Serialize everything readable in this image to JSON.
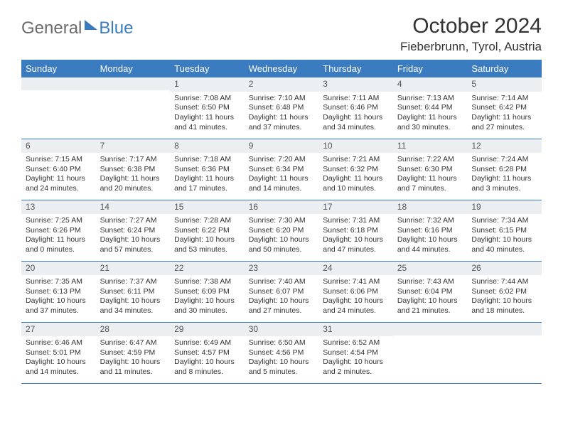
{
  "logo": {
    "general": "General",
    "blue": "Blue"
  },
  "title": "October 2024",
  "location": "Fieberbrunn, Tyrol, Austria",
  "weekdays": [
    "Sunday",
    "Monday",
    "Tuesday",
    "Wednesday",
    "Thursday",
    "Friday",
    "Saturday"
  ],
  "colors": {
    "header_bg": "#3b7bbf",
    "header_text": "#ffffff",
    "daynum_bg": "#eceff1",
    "border": "#3b7bbf",
    "logo_gray": "#6b6b6b",
    "logo_blue": "#3b7bbf"
  },
  "weeks": [
    [
      {
        "day": "",
        "sunrise": "",
        "sunset": "",
        "daylight": ""
      },
      {
        "day": "",
        "sunrise": "",
        "sunset": "",
        "daylight": ""
      },
      {
        "day": "1",
        "sunrise": "Sunrise: 7:08 AM",
        "sunset": "Sunset: 6:50 PM",
        "daylight": "Daylight: 11 hours and 41 minutes."
      },
      {
        "day": "2",
        "sunrise": "Sunrise: 7:10 AM",
        "sunset": "Sunset: 6:48 PM",
        "daylight": "Daylight: 11 hours and 37 minutes."
      },
      {
        "day": "3",
        "sunrise": "Sunrise: 7:11 AM",
        "sunset": "Sunset: 6:46 PM",
        "daylight": "Daylight: 11 hours and 34 minutes."
      },
      {
        "day": "4",
        "sunrise": "Sunrise: 7:13 AM",
        "sunset": "Sunset: 6:44 PM",
        "daylight": "Daylight: 11 hours and 30 minutes."
      },
      {
        "day": "5",
        "sunrise": "Sunrise: 7:14 AM",
        "sunset": "Sunset: 6:42 PM",
        "daylight": "Daylight: 11 hours and 27 minutes."
      }
    ],
    [
      {
        "day": "6",
        "sunrise": "Sunrise: 7:15 AM",
        "sunset": "Sunset: 6:40 PM",
        "daylight": "Daylight: 11 hours and 24 minutes."
      },
      {
        "day": "7",
        "sunrise": "Sunrise: 7:17 AM",
        "sunset": "Sunset: 6:38 PM",
        "daylight": "Daylight: 11 hours and 20 minutes."
      },
      {
        "day": "8",
        "sunrise": "Sunrise: 7:18 AM",
        "sunset": "Sunset: 6:36 PM",
        "daylight": "Daylight: 11 hours and 17 minutes."
      },
      {
        "day": "9",
        "sunrise": "Sunrise: 7:20 AM",
        "sunset": "Sunset: 6:34 PM",
        "daylight": "Daylight: 11 hours and 14 minutes."
      },
      {
        "day": "10",
        "sunrise": "Sunrise: 7:21 AM",
        "sunset": "Sunset: 6:32 PM",
        "daylight": "Daylight: 11 hours and 10 minutes."
      },
      {
        "day": "11",
        "sunrise": "Sunrise: 7:22 AM",
        "sunset": "Sunset: 6:30 PM",
        "daylight": "Daylight: 11 hours and 7 minutes."
      },
      {
        "day": "12",
        "sunrise": "Sunrise: 7:24 AM",
        "sunset": "Sunset: 6:28 PM",
        "daylight": "Daylight: 11 hours and 3 minutes."
      }
    ],
    [
      {
        "day": "13",
        "sunrise": "Sunrise: 7:25 AM",
        "sunset": "Sunset: 6:26 PM",
        "daylight": "Daylight: 11 hours and 0 minutes."
      },
      {
        "day": "14",
        "sunrise": "Sunrise: 7:27 AM",
        "sunset": "Sunset: 6:24 PM",
        "daylight": "Daylight: 10 hours and 57 minutes."
      },
      {
        "day": "15",
        "sunrise": "Sunrise: 7:28 AM",
        "sunset": "Sunset: 6:22 PM",
        "daylight": "Daylight: 10 hours and 53 minutes."
      },
      {
        "day": "16",
        "sunrise": "Sunrise: 7:30 AM",
        "sunset": "Sunset: 6:20 PM",
        "daylight": "Daylight: 10 hours and 50 minutes."
      },
      {
        "day": "17",
        "sunrise": "Sunrise: 7:31 AM",
        "sunset": "Sunset: 6:18 PM",
        "daylight": "Daylight: 10 hours and 47 minutes."
      },
      {
        "day": "18",
        "sunrise": "Sunrise: 7:32 AM",
        "sunset": "Sunset: 6:16 PM",
        "daylight": "Daylight: 10 hours and 44 minutes."
      },
      {
        "day": "19",
        "sunrise": "Sunrise: 7:34 AM",
        "sunset": "Sunset: 6:15 PM",
        "daylight": "Daylight: 10 hours and 40 minutes."
      }
    ],
    [
      {
        "day": "20",
        "sunrise": "Sunrise: 7:35 AM",
        "sunset": "Sunset: 6:13 PM",
        "daylight": "Daylight: 10 hours and 37 minutes."
      },
      {
        "day": "21",
        "sunrise": "Sunrise: 7:37 AM",
        "sunset": "Sunset: 6:11 PM",
        "daylight": "Daylight: 10 hours and 34 minutes."
      },
      {
        "day": "22",
        "sunrise": "Sunrise: 7:38 AM",
        "sunset": "Sunset: 6:09 PM",
        "daylight": "Daylight: 10 hours and 30 minutes."
      },
      {
        "day": "23",
        "sunrise": "Sunrise: 7:40 AM",
        "sunset": "Sunset: 6:07 PM",
        "daylight": "Daylight: 10 hours and 27 minutes."
      },
      {
        "day": "24",
        "sunrise": "Sunrise: 7:41 AM",
        "sunset": "Sunset: 6:06 PM",
        "daylight": "Daylight: 10 hours and 24 minutes."
      },
      {
        "day": "25",
        "sunrise": "Sunrise: 7:43 AM",
        "sunset": "Sunset: 6:04 PM",
        "daylight": "Daylight: 10 hours and 21 minutes."
      },
      {
        "day": "26",
        "sunrise": "Sunrise: 7:44 AM",
        "sunset": "Sunset: 6:02 PM",
        "daylight": "Daylight: 10 hours and 18 minutes."
      }
    ],
    [
      {
        "day": "27",
        "sunrise": "Sunrise: 6:46 AM",
        "sunset": "Sunset: 5:01 PM",
        "daylight": "Daylight: 10 hours and 14 minutes."
      },
      {
        "day": "28",
        "sunrise": "Sunrise: 6:47 AM",
        "sunset": "Sunset: 4:59 PM",
        "daylight": "Daylight: 10 hours and 11 minutes."
      },
      {
        "day": "29",
        "sunrise": "Sunrise: 6:49 AM",
        "sunset": "Sunset: 4:57 PM",
        "daylight": "Daylight: 10 hours and 8 minutes."
      },
      {
        "day": "30",
        "sunrise": "Sunrise: 6:50 AM",
        "sunset": "Sunset: 4:56 PM",
        "daylight": "Daylight: 10 hours and 5 minutes."
      },
      {
        "day": "31",
        "sunrise": "Sunrise: 6:52 AM",
        "sunset": "Sunset: 4:54 PM",
        "daylight": "Daylight: 10 hours and 2 minutes."
      },
      {
        "day": "",
        "sunrise": "",
        "sunset": "",
        "daylight": ""
      },
      {
        "day": "",
        "sunrise": "",
        "sunset": "",
        "daylight": ""
      }
    ]
  ]
}
